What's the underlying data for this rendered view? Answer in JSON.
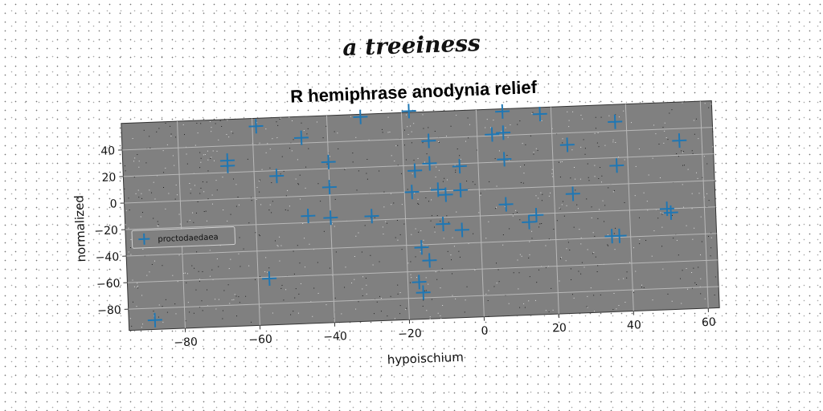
{
  "suptitle": "a treeiness",
  "chart_data": {
    "type": "scatter",
    "title": "R hemiphrase anodynia relief",
    "xlabel": "hypoischium",
    "ylabel": "normalized",
    "xlim": [
      -95,
      63
    ],
    "ylim": [
      -96,
      60
    ],
    "xticks": [
      -80,
      -60,
      -40,
      -20,
      0,
      20,
      40,
      60
    ],
    "yticks": [
      -80,
      -60,
      -40,
      -20,
      0,
      20,
      40
    ],
    "grid": true,
    "legend_position": "center-left",
    "series": [
      {
        "name": "proctodaedaea",
        "marker": "plus",
        "color": "#1f77b4",
        "points": [
          [
            -88,
            -89
          ],
          [
            -67,
            29
          ],
          [
            -67,
            25
          ],
          [
            -59,
            54
          ],
          [
            -54,
            16
          ],
          [
            -57,
            -61
          ],
          [
            -47,
            44
          ],
          [
            -40,
            25
          ],
          [
            -40,
            6
          ],
          [
            -46,
            -15
          ],
          [
            -40,
            -17
          ],
          [
            -31,
            58
          ],
          [
            -29,
            -17
          ],
          [
            -18,
            61
          ],
          [
            -17,
            16
          ],
          [
            -18,
            0
          ],
          [
            -13,
            38
          ],
          [
            -13,
            21
          ],
          [
            -11,
            1
          ],
          [
            -9,
            -3
          ],
          [
            -5,
            18
          ],
          [
            -5,
            0
          ],
          [
            -10,
            -25
          ],
          [
            -5,
            -30
          ],
          [
            -16,
            -42
          ],
          [
            -14,
            -52
          ],
          [
            -17,
            -68
          ],
          [
            -16,
            -76
          ],
          [
            4,
            41
          ],
          [
            7,
            58
          ],
          [
            7,
            42
          ],
          [
            7,
            22
          ],
          [
            7,
            -12
          ],
          [
            17,
            55
          ],
          [
            24,
            31
          ],
          [
            25,
            -6
          ],
          [
            15,
            -21
          ],
          [
            13,
            -26
          ],
          [
            37,
            47
          ],
          [
            37,
            14
          ],
          [
            35,
            -39
          ],
          [
            37,
            -39
          ],
          [
            50,
            -20
          ],
          [
            51,
            -23
          ],
          [
            54,
            31
          ]
        ]
      }
    ]
  },
  "colors": {
    "plot_bg": "#808080",
    "grid": "#b8b8b8",
    "marker": "#1f77b4"
  }
}
